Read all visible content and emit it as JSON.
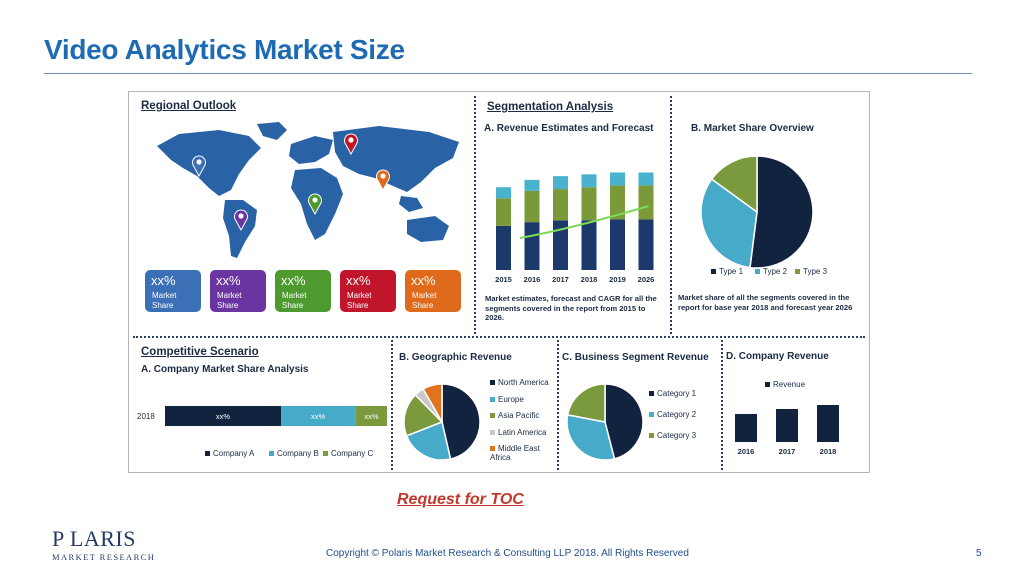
{
  "slide": {
    "title": "Video Analytics Market Size",
    "toc_link": "Request for TOC",
    "copyright": "Copyright © Polaris Market Research & Consulting LLP 2018. All Rights Reserved",
    "page_number": "5",
    "logo": {
      "name": "P LARIS",
      "sub": "MARKET RESEARCH"
    }
  },
  "regional": {
    "heading": "Regional Outlook",
    "tiles": [
      {
        "value": "xx%",
        "label": "Market Share",
        "color": "#3b6fb6"
      },
      {
        "value": "xx%",
        "label": "Market Share",
        "color": "#6a35a0"
      },
      {
        "value": "xx%",
        "label": "Market Share",
        "color": "#4d9a2e"
      },
      {
        "value": "xx%",
        "label": "Market Share",
        "color": "#c0152b"
      },
      {
        "value": "xx%",
        "label": "Market Share",
        "color": "#e06a1b"
      }
    ],
    "pin_colors": [
      "#3b6fb6",
      "#6a35a0",
      "#4d9a2e",
      "#c0152b",
      "#e06a1b"
    ]
  },
  "segmentation": {
    "heading": "Segmentation Analysis",
    "revenue_title": "A. Revenue Estimates and Forecast",
    "revenue_caption": "Market estimates, forecast and CAGR for all the segments covered in the report from 2015 to 2026.",
    "share_title": "B. Market Share Overview",
    "share_caption": "Market share of all the segments covered in the report for base year 2018 and forecast year 2026"
  },
  "competitive": {
    "heading": "Competitive Scenario",
    "title": "A. Company Market Share Analysis",
    "geo_title": "B. Geographic Revenue",
    "business_title": "C. Business Segment Revenue",
    "company_title": "D. Company Revenue"
  },
  "chart_data": [
    {
      "type": "bar",
      "title": "A. Revenue Estimates and Forecast",
      "stacked": true,
      "categories": [
        "2015",
        "2016",
        "2017",
        "2018",
        "2019",
        "2026"
      ],
      "series": [
        {
          "values": [
            48,
            52,
            54,
            54,
            55,
            55
          ],
          "color": "#1b3a6b"
        },
        {
          "values": [
            30,
            34,
            34,
            36,
            37,
            37
          ],
          "color": "#7a9a3a"
        },
        {
          "values": [
            12,
            12,
            14,
            14,
            14,
            14
          ],
          "color": "#48b2cf"
        }
      ],
      "trend_line": true
    },
    {
      "type": "pie",
      "title": "B. Market Share Overview",
      "labels": [
        "Type 1",
        "Type 2",
        "Type 3"
      ],
      "values": [
        52,
        33,
        15
      ],
      "colors": [
        "#12233f",
        "#48aac9",
        "#7b9a3d"
      ]
    },
    {
      "type": "bar",
      "title": "A. Company Market Share Analysis",
      "orientation": "horizontal",
      "stacked": true,
      "categories": [
        "2018"
      ],
      "series": [
        {
          "name": "Company A",
          "values": [
            50
          ],
          "data_label": "xx%",
          "color": "#12233f"
        },
        {
          "name": "Company B",
          "values": [
            32
          ],
          "data_label": "xx%",
          "color": "#48aac9"
        },
        {
          "name": "Company C",
          "values": [
            14
          ],
          "data_label": "xx%",
          "color": "#7b9a3d"
        }
      ]
    },
    {
      "type": "pie",
      "title": "B. Geographic Revenue",
      "labels": [
        "North America",
        "Europe",
        "Asia Pacific",
        "Latin America",
        "Middle East Africa"
      ],
      "values": [
        45,
        22,
        18,
        4,
        8
      ],
      "colors": [
        "#12233f",
        "#48aac9",
        "#7b9a3d",
        "#c9c9c9",
        "#e0731e"
      ]
    },
    {
      "type": "pie",
      "title": "C. Business Segment Revenue",
      "labels": [
        "Category 1",
        "Category 2",
        "Category 3"
      ],
      "values": [
        46,
        32,
        22
      ],
      "colors": [
        "#12233f",
        "#48aac9",
        "#7b9a3d"
      ]
    },
    {
      "type": "bar",
      "title": "D. Company Revenue",
      "categories": [
        "2016",
        "2017",
        "2018"
      ],
      "series": [
        {
          "name": "Revenue",
          "values": [
            28,
            33,
            37
          ],
          "color": "#12233f"
        }
      ]
    }
  ]
}
